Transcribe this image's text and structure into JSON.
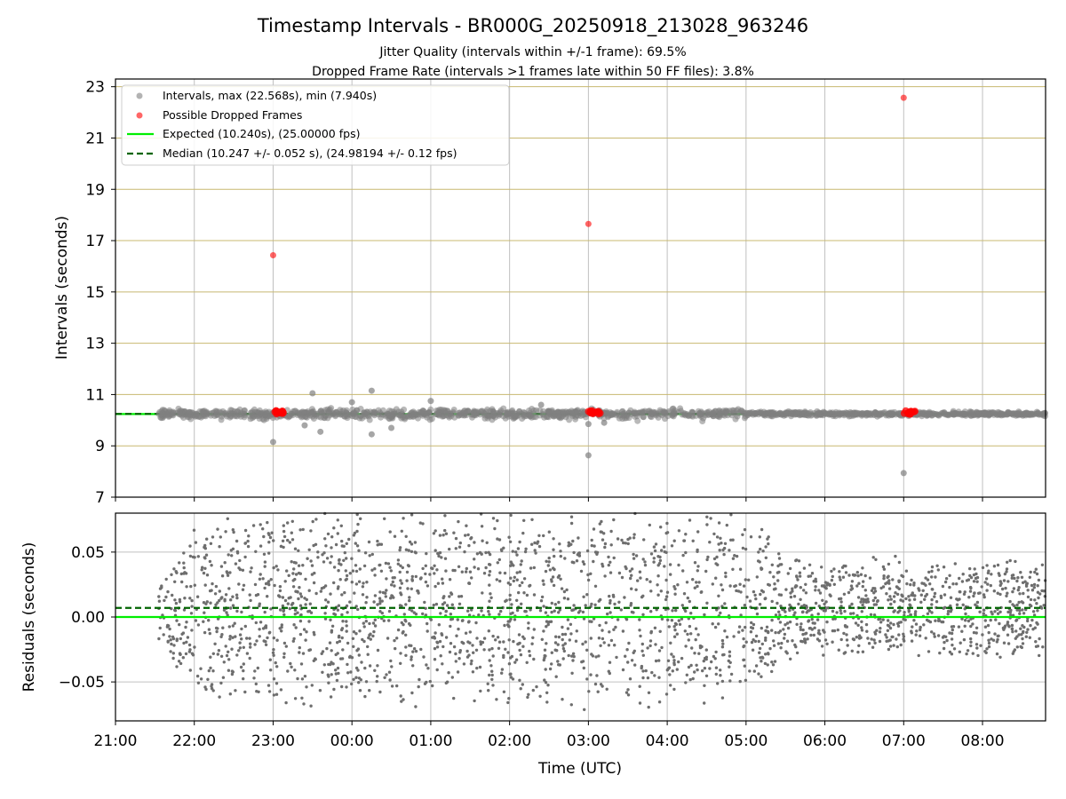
{
  "chart_data": [
    {
      "type": "scatter",
      "title": "Timestamp Intervals - BR000G_20250918_213028_963246",
      "subtitle_lines": [
        "Jitter Quality (intervals within +/-1 frame): 69.5%",
        "Dropped Frame Rate (intervals >1 frames late within 50 FF files): 3.8%"
      ],
      "ylabel": "Intervals (seconds)",
      "ylim": [
        7,
        23.3
      ],
      "yticks": [
        7,
        9,
        11,
        13,
        15,
        17,
        19,
        21,
        23
      ],
      "x_range_hours": [
        21.0,
        32.8
      ],
      "x_ticks": [
        21,
        22,
        23,
        24,
        25,
        26,
        27,
        28,
        29,
        30,
        31,
        32
      ],
      "x_tick_labels": [
        "21:00",
        "22:00",
        "23:00",
        "00:00",
        "01:00",
        "02:00",
        "03:00",
        "04:00",
        "05:00",
        "06:00",
        "07:00",
        "08:00"
      ],
      "grid": true,
      "legend_position": "top-left",
      "legend": [
        "Intervals, max (22.568s), min (7.940s)",
        "Possible Dropped Frames",
        "Expected (10.240s), (25.00000 fps)",
        "Median (10.247 +/- 0.052 s), (24.98194 +/- 0.12 fps)"
      ],
      "expected_interval": 10.24,
      "median_interval": 10.247,
      "data_start_hour": 21.55,
      "series": [
        {
          "name": "Intervals, max (22.568s), min (7.940s)",
          "points": [
            [
              23.0,
              9.15
            ],
            [
              23.6,
              9.55
            ],
            [
              23.5,
              11.05
            ],
            [
              24.25,
              11.15
            ],
            [
              24.25,
              9.45
            ],
            [
              27.0,
              8.63
            ],
            [
              27.0,
              9.85
            ],
            [
              31.0,
              7.94
            ],
            [
              23.4,
              9.8
            ],
            [
              24.5,
              9.7
            ],
            [
              25.0,
              10.75
            ],
            [
              24.0,
              10.7
            ],
            [
              26.4,
              10.6
            ],
            [
              27.2,
              9.9
            ]
          ]
        },
        {
          "name": "Possible Dropped Frames",
          "points": [
            [
              23.0,
              16.43
            ],
            [
              27.0,
              17.65
            ],
            [
              31.0,
              22.57
            ]
          ],
          "clusters": [
            [
              23.0,
              23.15
            ],
            [
              27.0,
              27.15
            ],
            [
              31.0,
              31.15
            ]
          ],
          "cluster_value": 10.3
        }
      ]
    },
    {
      "type": "scatter",
      "title": "",
      "xlabel": "Time (UTC)",
      "ylabel": "Residuals (seconds)",
      "ylim": [
        -0.08,
        0.08
      ],
      "yticks": [
        -0.05,
        0.0,
        0.05
      ],
      "y_tick_labels": [
        "−0.05",
        "0.00",
        "0.05"
      ],
      "x_range_hours": [
        21.0,
        32.8
      ],
      "x_ticks": [
        21,
        22,
        23,
        24,
        25,
        26,
        27,
        28,
        29,
        30,
        31,
        32
      ],
      "x_tick_labels": [
        "21:00",
        "22:00",
        "23:00",
        "00:00",
        "01:00",
        "02:00",
        "03:00",
        "04:00",
        "05:00",
        "06:00",
        "07:00",
        "08:00"
      ],
      "grid": true,
      "median_residual": 0.007,
      "expected_residual": 0.0,
      "spread_profile": [
        [
          21.55,
          0.03
        ],
        [
          22.2,
          0.08
        ],
        [
          29.0,
          0.08
        ],
        [
          29.6,
          0.04
        ],
        [
          32.8,
          0.04
        ]
      ]
    }
  ],
  "colors": {
    "interval_points": "#808080",
    "dropped_points": "#ff0000",
    "expected_line": "#00ee00",
    "median_line": "#006400",
    "grid": "#c0c0c0",
    "grid_yellow": "#c8b870"
  }
}
